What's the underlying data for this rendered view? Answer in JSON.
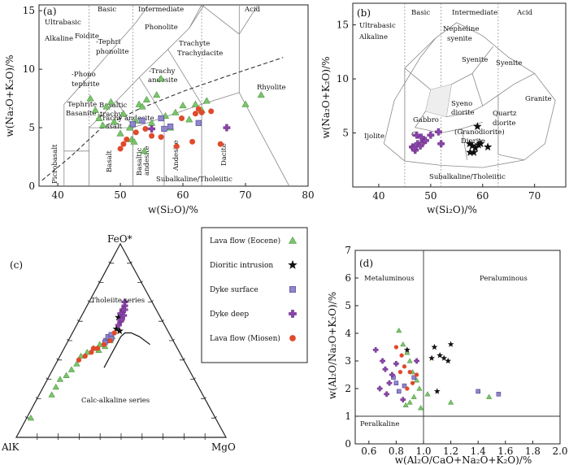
{
  "colors": {
    "lava_eocene": "#7ac46a",
    "dioritic": "#111111",
    "dyke_surface": "#8f87cc",
    "dyke_deep": "#8a44a8",
    "lava_miosen": "#e04a2a",
    "line": "#8a8a8a",
    "frame": "#222222"
  },
  "legend": {
    "items": [
      {
        "label": "Lava flow (Eocene)",
        "marker": "triangle",
        "color": "#7ac46a"
      },
      {
        "label": "Dioritic intrusion",
        "marker": "star",
        "color": "#111111"
      },
      {
        "label": "Dyke surface",
        "marker": "square",
        "color": "#8f87cc"
      },
      {
        "label": "Dyke deep",
        "marker": "cross",
        "color": "#8a44a8"
      },
      {
        "label": "Lava flow (Miosen)",
        "marker": "circle",
        "color": "#e04a2a"
      }
    ]
  },
  "chart_data": [
    {
      "id": "a",
      "type": "scatter",
      "panel_label": "(a)",
      "xlabel": "w(Si₂O)/%",
      "ylabel": "w(Na₂O+K₂O)/%",
      "xlim": [
        37,
        80
      ],
      "ylim": [
        0,
        15.5
      ],
      "xticks": [
        40,
        50,
        60,
        70,
        80
      ],
      "yticks": [
        0,
        5,
        10,
        15
      ],
      "field_labels": [
        "Basic",
        "Intermediate",
        "Acid",
        "Ultrabasic",
        "Alkaline",
        "Foidite",
        "Phonolite",
        "-Tephri",
        "phonolite",
        "-Phono",
        "tephrite",
        "-Trachy",
        "andesite",
        "Trachyte",
        "Trachydacite",
        "Rhyolite",
        "Tephrite",
        "Basanite",
        "Basaltic",
        "-trachy",
        "-Trachy andesite",
        "basalt",
        "Picrobasalt",
        "Basalt",
        "Basaltic",
        "andesite",
        "Andesite",
        "Dacite",
        "Subalkaline/Tholeiitic"
      ],
      "series": [
        {
          "name": "Lava flow (Eocene)",
          "points": [
            [
              45.2,
              7.5
            ],
            [
              46.0,
              6.5
            ],
            [
              46.6,
              5.8
            ],
            [
              47.2,
              5.2
            ],
            [
              47.8,
              6.8
            ],
            [
              48.5,
              7.2
            ],
            [
              49.0,
              5.5
            ],
            [
              50.0,
              4.5
            ],
            [
              50.5,
              6.2
            ],
            [
              51.5,
              5.0
            ],
            [
              51.8,
              4.0
            ],
            [
              52.5,
              5.6
            ],
            [
              53.0,
              7.0
            ],
            [
              53.5,
              6.8
            ],
            [
              54.2,
              7.4
            ],
            [
              55.0,
              5.4
            ],
            [
              55.8,
              7.8
            ],
            [
              56.5,
              9.2
            ],
            [
              57.2,
              6.0
            ],
            [
              58.0,
              5.0
            ],
            [
              58.8,
              6.3
            ],
            [
              60.0,
              6.9
            ],
            [
              61.0,
              5.7
            ],
            [
              62.0,
              7.0
            ],
            [
              63.0,
              6.5
            ],
            [
              63.8,
              7.3
            ],
            [
              53.8,
              3.0
            ],
            [
              52.2,
              3.8
            ],
            [
              70.0,
              7.0
            ],
            [
              72.5,
              7.8
            ]
          ]
        },
        {
          "name": "Dyke surface",
          "points": [
            [
              52.0,
              5.3
            ],
            [
              56.5,
              5.8
            ],
            [
              58.0,
              5.1
            ],
            [
              62.5,
              5.4
            ],
            [
              53.5,
              5.6
            ],
            [
              57.0,
              4.9
            ]
          ]
        },
        {
          "name": "Dyke deep",
          "points": [
            [
              67.0,
              5.0
            ],
            [
              55.0,
              4.9
            ]
          ]
        },
        {
          "name": "Lava flow (Miosen)",
          "points": [
            [
              50.0,
              3.2
            ],
            [
              50.5,
              3.6
            ],
            [
              51.0,
              4.0
            ],
            [
              52.5,
              4.6
            ],
            [
              54.0,
              4.9
            ],
            [
              55.0,
              4.3
            ],
            [
              56.5,
              4.2
            ],
            [
              59.0,
              3.4
            ],
            [
              59.8,
              5.8
            ],
            [
              62.0,
              6.2
            ],
            [
              62.5,
              6.6
            ],
            [
              63.0,
              6.3
            ],
            [
              64.5,
              6.4
            ],
            [
              66.0,
              3.6
            ],
            [
              61.5,
              3.8
            ]
          ]
        }
      ]
    },
    {
      "id": "b",
      "type": "scatter",
      "panel_label": "(b)",
      "xlabel": "w(Si₂O)/%",
      "ylabel": "w(Na₂O+K₂O)/%",
      "xlim": [
        35,
        76
      ],
      "ylim": [
        0,
        17
      ],
      "xticks": [
        40,
        50,
        60,
        70
      ],
      "yticks": [
        5,
        10,
        15
      ],
      "field_labels": [
        "Basic",
        "Intermediate",
        "Acid",
        "Ultrabasic",
        "Alkaline",
        "Nepheline",
        "syenite",
        "Syenite",
        "Syenite",
        "Granite",
        "Syeno",
        "diorite",
        "Gabbro",
        "(Granodiorite)",
        "Diorite",
        "Quartz",
        "diorite",
        "Ijolite",
        "Subalkaline/Tholeiitic",
        "G"
      ],
      "series": [
        {
          "name": "Dioritic intrusion",
          "points": [
            [
              57.5,
              4.0
            ],
            [
              58.0,
              3.8
            ],
            [
              58.6,
              3.6
            ],
            [
              59.2,
              3.9
            ],
            [
              58.3,
              3.2
            ],
            [
              57.6,
              3.2
            ],
            [
              59.6,
              4.0
            ],
            [
              61.0,
              3.7
            ],
            [
              59.0,
              5.6
            ]
          ]
        },
        {
          "name": "Dyke deep",
          "points": [
            [
              46.5,
              3.7
            ],
            [
              47.0,
              3.4
            ],
            [
              47.5,
              4.0
            ],
            [
              48.0,
              3.8
            ],
            [
              48.6,
              4.2
            ],
            [
              47.3,
              4.8
            ],
            [
              49.0,
              4.3
            ],
            [
              51.5,
              5.1
            ],
            [
              50.0,
              4.8
            ],
            [
              52.0,
              4.0
            ],
            [
              46.8,
              3.6
            ],
            [
              48.2,
              4.6
            ]
          ]
        }
      ]
    },
    {
      "id": "c",
      "type": "ternary",
      "panel_label": "(c)",
      "apex_labels": {
        "top": "FeO*",
        "left": "AlK",
        "right": "MgO"
      },
      "field_labels": [
        "Tholeiite series",
        "Calc-alkaline series"
      ],
      "boundary_line": [
        [
          0.4,
          0.36,
          0.24
        ],
        [
          0.34,
          0.42,
          0.24
        ],
        [
          0.28,
          0.48,
          0.24
        ],
        [
          0.24,
          0.52,
          0.24
        ],
        [
          0.21,
          0.54,
          0.25
        ],
        [
          0.18,
          0.54,
          0.28
        ],
        [
          0.15,
          0.52,
          0.33
        ],
        [
          0.12,
          0.48,
          0.4
        ]
      ],
      "series": [
        {
          "name": "Lava flow (Eocene)",
          "points": [
            [
              0.88,
              0.1,
              0.02
            ],
            [
              0.72,
              0.22,
              0.06
            ],
            [
              0.68,
              0.26,
              0.06
            ],
            [
              0.64,
              0.3,
              0.06
            ],
            [
              0.6,
              0.32,
              0.08
            ],
            [
              0.56,
              0.35,
              0.09
            ],
            [
              0.52,
              0.38,
              0.1
            ],
            [
              0.48,
              0.42,
              0.1
            ],
            [
              0.44,
              0.44,
              0.12
            ],
            [
              0.4,
              0.46,
              0.14
            ],
            [
              0.36,
              0.48,
              0.16
            ],
            [
              0.32,
              0.5,
              0.18
            ],
            [
              0.28,
              0.52,
              0.2
            ],
            [
              0.3,
              0.5,
              0.2
            ],
            [
              0.34,
              0.47,
              0.19
            ],
            [
              0.38,
              0.45,
              0.17
            ]
          ]
        },
        {
          "name": "Dioritic intrusion",
          "points": [
            [
              0.24,
              0.56,
              0.2
            ],
            [
              0.2,
              0.62,
              0.18
            ],
            [
              0.23,
              0.55,
              0.22
            ]
          ]
        },
        {
          "name": "Dyke surface",
          "points": [
            [
              0.32,
              0.5,
              0.18
            ],
            [
              0.3,
              0.52,
              0.18
            ],
            [
              0.28,
              0.53,
              0.19
            ],
            [
              0.33,
              0.49,
              0.18
            ],
            [
              0.29,
              0.51,
              0.2
            ]
          ]
        },
        {
          "name": "Dyke deep",
          "points": [
            [
              0.18,
              0.64,
              0.18
            ],
            [
              0.16,
              0.66,
              0.18
            ],
            [
              0.14,
              0.68,
              0.18
            ],
            [
              0.15,
              0.66,
              0.19
            ],
            [
              0.2,
              0.6,
              0.2
            ],
            [
              0.22,
              0.58,
              0.2
            ],
            [
              0.17,
              0.63,
              0.2
            ],
            [
              0.19,
              0.61,
              0.2
            ],
            [
              0.13,
              0.7,
              0.17
            ]
          ]
        },
        {
          "name": "Lava flow (Miosen)",
          "points": [
            [
              0.46,
              0.42,
              0.12
            ],
            [
              0.42,
              0.44,
              0.14
            ],
            [
              0.38,
              0.46,
              0.16
            ],
            [
              0.34,
              0.48,
              0.18
            ],
            [
              0.3,
              0.5,
              0.2
            ],
            [
              0.26,
              0.54,
              0.2
            ],
            [
              0.5,
              0.4,
              0.1
            ],
            [
              0.4,
              0.46,
              0.14
            ]
          ]
        }
      ]
    },
    {
      "id": "d",
      "type": "scatter",
      "panel_label": "(d)",
      "xlabel": "w(Al₂O/CaO+Na₂O+K₂O)/%",
      "ylabel": "w(Al₂O/Na₂O+K₂O)/%",
      "xlim": [
        0.5,
        2.0
      ],
      "ylim": [
        0,
        7
      ],
      "xticks": [
        0.6,
        0.8,
        1.0,
        1.2,
        1.4,
        1.6,
        1.8,
        2.0
      ],
      "yticks": [
        0,
        1,
        2,
        3,
        4,
        5,
        6,
        7
      ],
      "field_labels": [
        "Metaluminous",
        "Peraluminous",
        "Peralkaline"
      ],
      "series": [
        {
          "name": "Lava flow (Eocene)",
          "points": [
            [
              0.82,
              4.1
            ],
            [
              0.85,
              3.6
            ],
            [
              0.88,
              3.3
            ],
            [
              0.9,
              3.0
            ],
            [
              0.92,
              2.6
            ],
            [
              0.95,
              2.3
            ],
            [
              0.97,
              2.0
            ],
            [
              0.93,
              1.7
            ],
            [
              0.9,
              1.5
            ],
            [
              0.87,
              1.4
            ],
            [
              0.98,
              1.3
            ],
            [
              1.03,
              1.8
            ],
            [
              1.2,
              1.5
            ],
            [
              1.48,
              1.7
            ]
          ]
        },
        {
          "name": "Dioritic intrusion",
          "points": [
            [
              1.08,
              3.5
            ],
            [
              1.12,
              3.2
            ],
            [
              1.15,
              3.1
            ],
            [
              1.18,
              3.0
            ],
            [
              1.2,
              3.6
            ],
            [
              1.06,
              3.1
            ],
            [
              1.1,
              1.9
            ],
            [
              0.88,
              3.4
            ]
          ]
        },
        {
          "name": "Dyke surface",
          "points": [
            [
              0.78,
              2.4
            ],
            [
              0.82,
              1.9
            ],
            [
              0.86,
              2.1
            ],
            [
              0.8,
              2.2
            ],
            [
              1.4,
              1.9
            ],
            [
              1.55,
              1.8
            ],
            [
              0.93,
              2.4
            ]
          ]
        },
        {
          "name": "Dyke deep",
          "points": [
            [
              0.65,
              3.4
            ],
            [
              0.7,
              3.0
            ],
            [
              0.72,
              2.7
            ],
            [
              0.75,
              2.2
            ],
            [
              0.77,
              2.5
            ],
            [
              0.8,
              2.9
            ],
            [
              0.68,
              2.0
            ],
            [
              0.73,
              1.8
            ],
            [
              0.85,
              1.6
            ],
            [
              0.95,
              3.0
            ]
          ]
        },
        {
          "name": "Lava flow (Miosen)",
          "points": [
            [
              0.8,
              3.5
            ],
            [
              0.84,
              3.2
            ],
            [
              0.86,
              2.8
            ],
            [
              0.9,
              2.6
            ],
            [
              0.92,
              2.2
            ],
            [
              0.88,
              2.0
            ],
            [
              0.95,
              2.5
            ],
            [
              0.83,
              2.6
            ]
          ]
        }
      ]
    }
  ]
}
